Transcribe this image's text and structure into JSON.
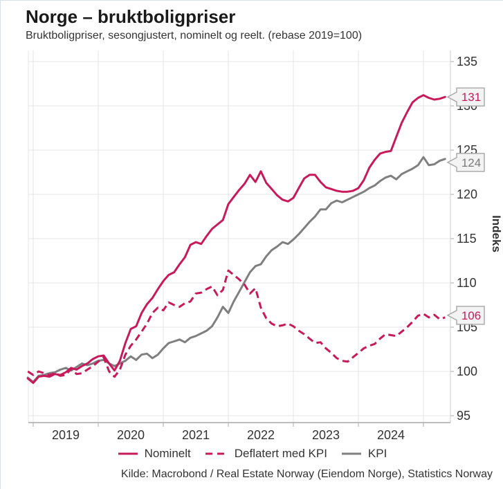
{
  "header": {
    "title": "Norge – bruktboligpriser",
    "subtitle": "Bruktboligpriser, sesongjustert, nominelt og reelt. (rebase 2019=100)"
  },
  "chart_data": {
    "type": "line",
    "title": "Norge – bruktboligpriser",
    "subtitle": "Bruktboligpriser, sesongjustert, nominelt og reelt. (rebase 2019=100)",
    "y_axis": {
      "label": "Indeks",
      "min": 95,
      "max": 135,
      "ticks": [
        95,
        100,
        105,
        110,
        115,
        120,
        125,
        130,
        135
      ]
    },
    "x_axis": {
      "tick_years": [
        2019,
        2020,
        2021,
        2022,
        2023,
        2024
      ],
      "gridline_years": [
        2019,
        2020,
        2021,
        2022,
        2023,
        2024,
        2025
      ]
    },
    "frequency": "monthly",
    "start_decimal_year": 2018.9167,
    "grid": true,
    "legend_position": "bottom",
    "colors": {
      "accent_pink": "#C81A5B",
      "kpi_gray": "#7f7f7f",
      "grid": "#e4e4e4",
      "axis": "#a9a9a9",
      "plot_border": "#cccccc",
      "text": "#333333",
      "callout_bg": "#f3f3f3",
      "callout_border": "#a6a6a6"
    },
    "series": [
      {
        "name": "Nominelt",
        "style": "solid",
        "color": "#C81A5B",
        "end_label": "131",
        "label_color": "#C81A5B",
        "values": [
          99.2,
          98.7,
          99.4,
          99.5,
          99.4,
          99.7,
          99.6,
          99.9,
          100.4,
          100.2,
          100.6,
          100.9,
          101.4,
          101.7,
          101.8,
          100.9,
          100.1,
          101.2,
          103.2,
          104.8,
          105.1,
          106.6,
          107.6,
          108.3,
          109.3,
          110.2,
          110.9,
          111.2,
          112.1,
          112.9,
          114.3,
          114.6,
          114.4,
          115.3,
          116.1,
          116.6,
          117.1,
          118.9,
          119.7,
          120.5,
          121.2,
          122.2,
          121.4,
          122.6,
          121.3,
          120.6,
          119.9,
          119.4,
          119.2,
          119.6,
          120.7,
          121.8,
          122.2,
          122.2,
          121.4,
          120.8,
          120.6,
          120.4,
          120.3,
          120.3,
          120.4,
          120.7,
          121.6,
          123.0,
          123.9,
          124.6,
          124.8,
          124.9,
          126.5,
          128.1,
          129.3,
          130.4,
          130.9,
          131.2,
          130.9,
          130.7,
          130.8,
          131.0
        ]
      },
      {
        "name": "Deflatert med KPI",
        "style": "dashed",
        "color": "#C81A5B",
        "end_label": "106",
        "label_color": "#C81A5B",
        "values": [
          100.0,
          99.6,
          100.0,
          99.8,
          99.6,
          99.8,
          99.5,
          99.6,
          100.3,
          99.7,
          99.8,
          100.2,
          100.6,
          101.1,
          101.6,
          100.0,
          99.4,
          100.2,
          101.9,
          102.9,
          103.6,
          104.5,
          105.4,
          106.6,
          107.2,
          106.9,
          107.8,
          107.5,
          107.3,
          107.7,
          107.9,
          108.8,
          108.9,
          109.3,
          109.6,
          108.6,
          109.2,
          111.4,
          110.9,
          110.4,
          109.8,
          108.8,
          109.4,
          107.2,
          106.0,
          105.4,
          105.1,
          105.2,
          105.4,
          105.1,
          104.6,
          104.2,
          103.7,
          103.2,
          103.3,
          102.6,
          102.1,
          101.5,
          101.2,
          101.1,
          101.6,
          102.1,
          102.6,
          102.9,
          103.1,
          103.7,
          104.2,
          104.1,
          104.0,
          104.5,
          105.0,
          105.6,
          106.3,
          106.5,
          106.1,
          106.4,
          105.9,
          106.1
        ]
      },
      {
        "name": "KPI",
        "style": "solid",
        "color": "#7f7f7f",
        "end_label": "124",
        "label_color": "#7a7a7a",
        "values": [
          99.3,
          98.8,
          99.5,
          99.6,
          99.8,
          99.9,
          100.2,
          100.4,
          100.1,
          100.5,
          100.9,
          100.7,
          100.9,
          101.2,
          101.3,
          100.9,
          100.6,
          100.9,
          101.2,
          101.7,
          101.3,
          101.9,
          102.0,
          101.5,
          101.9,
          102.6,
          103.2,
          103.4,
          103.6,
          103.3,
          103.8,
          104.0,
          104.3,
          104.6,
          105.1,
          106.1,
          107.3,
          106.6,
          107.9,
          109.0,
          110.1,
          111.2,
          111.9,
          112.1,
          113.0,
          113.7,
          114.1,
          114.6,
          114.4,
          114.9,
          115.5,
          116.2,
          116.9,
          117.5,
          118.3,
          118.3,
          119.0,
          119.3,
          119.1,
          119.4,
          119.7,
          120.0,
          120.3,
          120.7,
          121.0,
          121.5,
          121.9,
          122.1,
          121.7,
          122.3,
          122.6,
          122.9,
          123.3,
          124.2,
          123.3,
          123.4,
          123.8,
          124.0
        ]
      }
    ]
  },
  "legend": {
    "items": [
      "Nominelt",
      "Deflatert med KPI",
      "KPI"
    ]
  },
  "source": "Kilde: Macrobond / Real Estate Norway (Eiendom Norge), Statistics Norway"
}
